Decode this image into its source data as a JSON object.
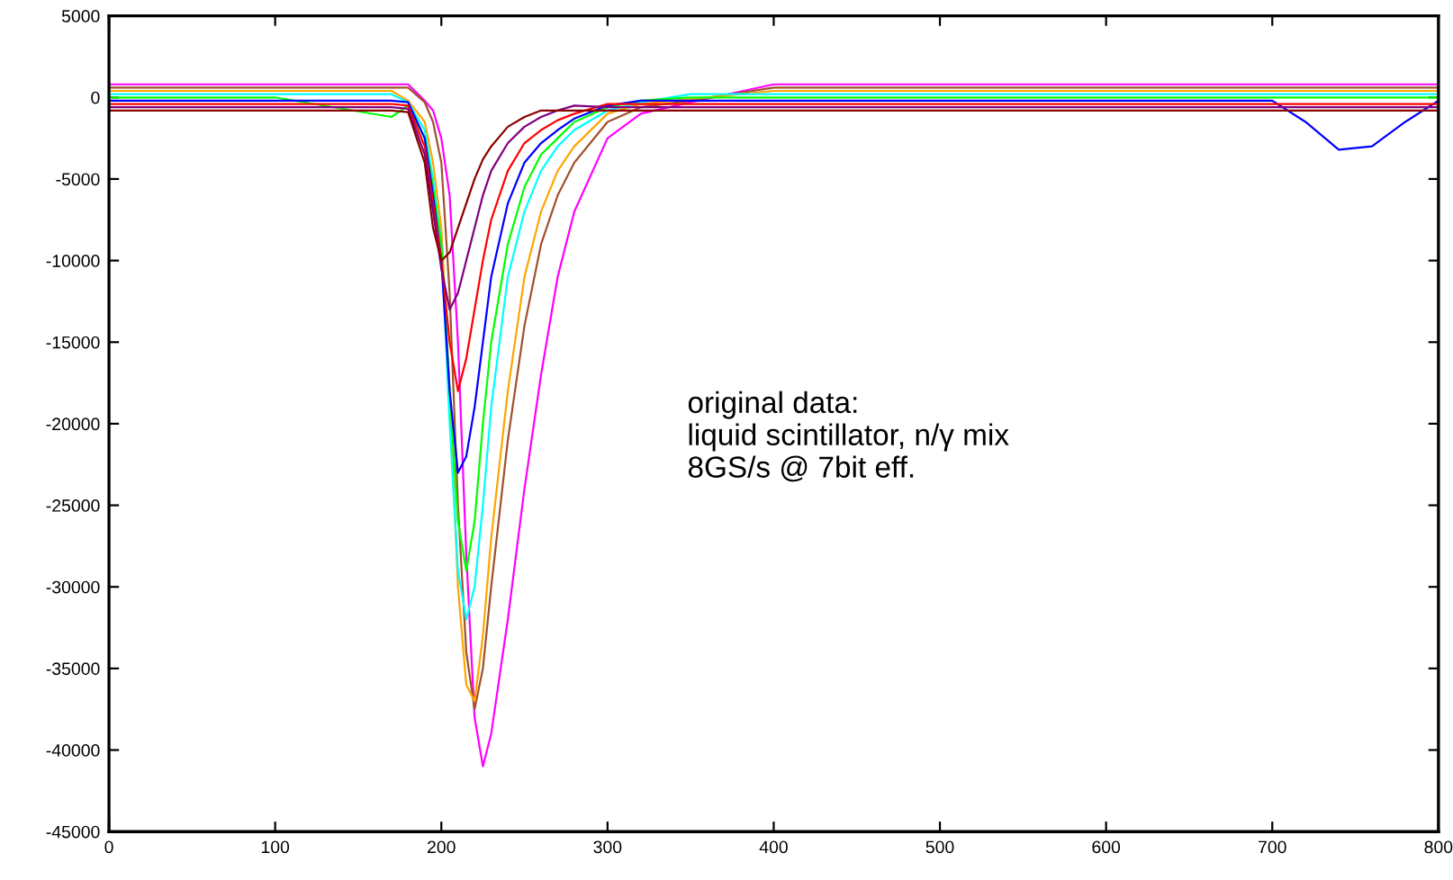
{
  "chart_data": {
    "type": "line",
    "x": [
      0,
      100,
      170,
      180,
      190,
      195,
      200,
      205,
      210,
      215,
      220,
      225,
      230,
      240,
      250,
      260,
      270,
      280,
      300,
      320,
      350,
      400,
      500,
      600,
      700,
      720,
      740,
      760,
      780,
      800
    ],
    "series": [
      {
        "color": "#ff00ff",
        "values": [
          800,
          800,
          800,
          800,
          -200,
          -800,
          -2500,
          -6000,
          -15000,
          -28000,
          -38000,
          -41000,
          -39000,
          -32000,
          -24000,
          -17000,
          -11000,
          -7000,
          -2500,
          -1000,
          -300,
          800,
          800,
          800,
          800,
          800,
          800,
          800,
          800,
          800
        ]
      },
      {
        "color": "#a0522d",
        "values": [
          600,
          600,
          600,
          600,
          -300,
          -1500,
          -4000,
          -12000,
          -25000,
          -34000,
          -37500,
          -35000,
          -30000,
          -21000,
          -14000,
          -9000,
          -6000,
          -4000,
          -1500,
          -600,
          -200,
          600,
          600,
          600,
          600,
          600,
          600,
          600,
          600,
          600
        ]
      },
      {
        "color": "#ffa500",
        "values": [
          400,
          400,
          400,
          -200,
          -1500,
          -4000,
          -8000,
          -18000,
          -30000,
          -36000,
          -37000,
          -33000,
          -27000,
          -18000,
          -11000,
          -7000,
          -4500,
          -3000,
          -1000,
          -400,
          -100,
          400,
          400,
          400,
          400,
          400,
          400,
          400,
          400,
          400
        ]
      },
      {
        "color": "#00ffff",
        "values": [
          200,
          200,
          200,
          -300,
          -2000,
          -5000,
          -9000,
          -20000,
          -29000,
          -32000,
          -30000,
          -25000,
          -19000,
          -11000,
          -7000,
          -4500,
          -3000,
          -2000,
          -800,
          -300,
          200,
          200,
          200,
          200,
          200,
          200,
          200,
          200,
          200,
          200
        ]
      },
      {
        "color": "#00ff00",
        "values": [
          0,
          0,
          -1200,
          -500,
          -2500,
          -5500,
          -9000,
          -18000,
          -26000,
          -29000,
          -26000,
          -20000,
          -15000,
          -9000,
          -5500,
          -3500,
          -2500,
          -1500,
          -600,
          -200,
          0,
          0,
          0,
          0,
          0,
          0,
          0,
          0,
          0,
          0
        ]
      },
      {
        "color": "#0000ff",
        "values": [
          -200,
          -200,
          -200,
          -300,
          -2500,
          -6000,
          -10000,
          -18000,
          -23000,
          -22000,
          -19000,
          -15000,
          -11000,
          -6500,
          -4000,
          -2800,
          -2000,
          -1300,
          -500,
          -200,
          -200,
          -200,
          -200,
          -200,
          -200,
          -1500,
          -3200,
          -3000,
          -1500,
          -200
        ]
      },
      {
        "color": "#ff0000",
        "values": [
          -400,
          -400,
          -400,
          -500,
          -3000,
          -6500,
          -10000,
          -15000,
          -18000,
          -16000,
          -13000,
          -10000,
          -7500,
          -4500,
          -2800,
          -2000,
          -1400,
          -1000,
          -400,
          -400,
          -400,
          -400,
          -400,
          -400,
          -400,
          -400,
          -400,
          -400,
          -400,
          -400
        ]
      },
      {
        "color": "#800080",
        "values": [
          -600,
          -600,
          -600,
          -700,
          -3500,
          -7000,
          -10500,
          -13000,
          -12000,
          -10000,
          -8000,
          -6000,
          -4500,
          -2800,
          -1800,
          -1200,
          -800,
          -500,
          -600,
          -600,
          -600,
          -600,
          -600,
          -600,
          -600,
          -600,
          -600,
          -600,
          -600,
          -600
        ]
      },
      {
        "color": "#8b0000",
        "values": [
          -800,
          -800,
          -800,
          -900,
          -4000,
          -8000,
          -10000,
          -9500,
          -8000,
          -6500,
          -5000,
          -3800,
          -3000,
          -1800,
          -1200,
          -800,
          -800,
          -800,
          -800,
          -800,
          -800,
          -800,
          -800,
          -800,
          -800,
          -800,
          -800,
          -800,
          -800,
          -800
        ]
      }
    ],
    "xlim": [
      0,
      800
    ],
    "ylim": [
      -45000,
      5000
    ],
    "xticks": [
      0,
      100,
      200,
      300,
      400,
      500,
      600,
      700,
      800
    ],
    "yticks": [
      -45000,
      -40000,
      -35000,
      -30000,
      -25000,
      -20000,
      -15000,
      -10000,
      -5000,
      0,
      5000
    ],
    "grid": false,
    "legend": false,
    "annotations": [
      "original data:\nliquid scintillator, n/γ mix\n8GS/s @ 7bit eff."
    ]
  }
}
